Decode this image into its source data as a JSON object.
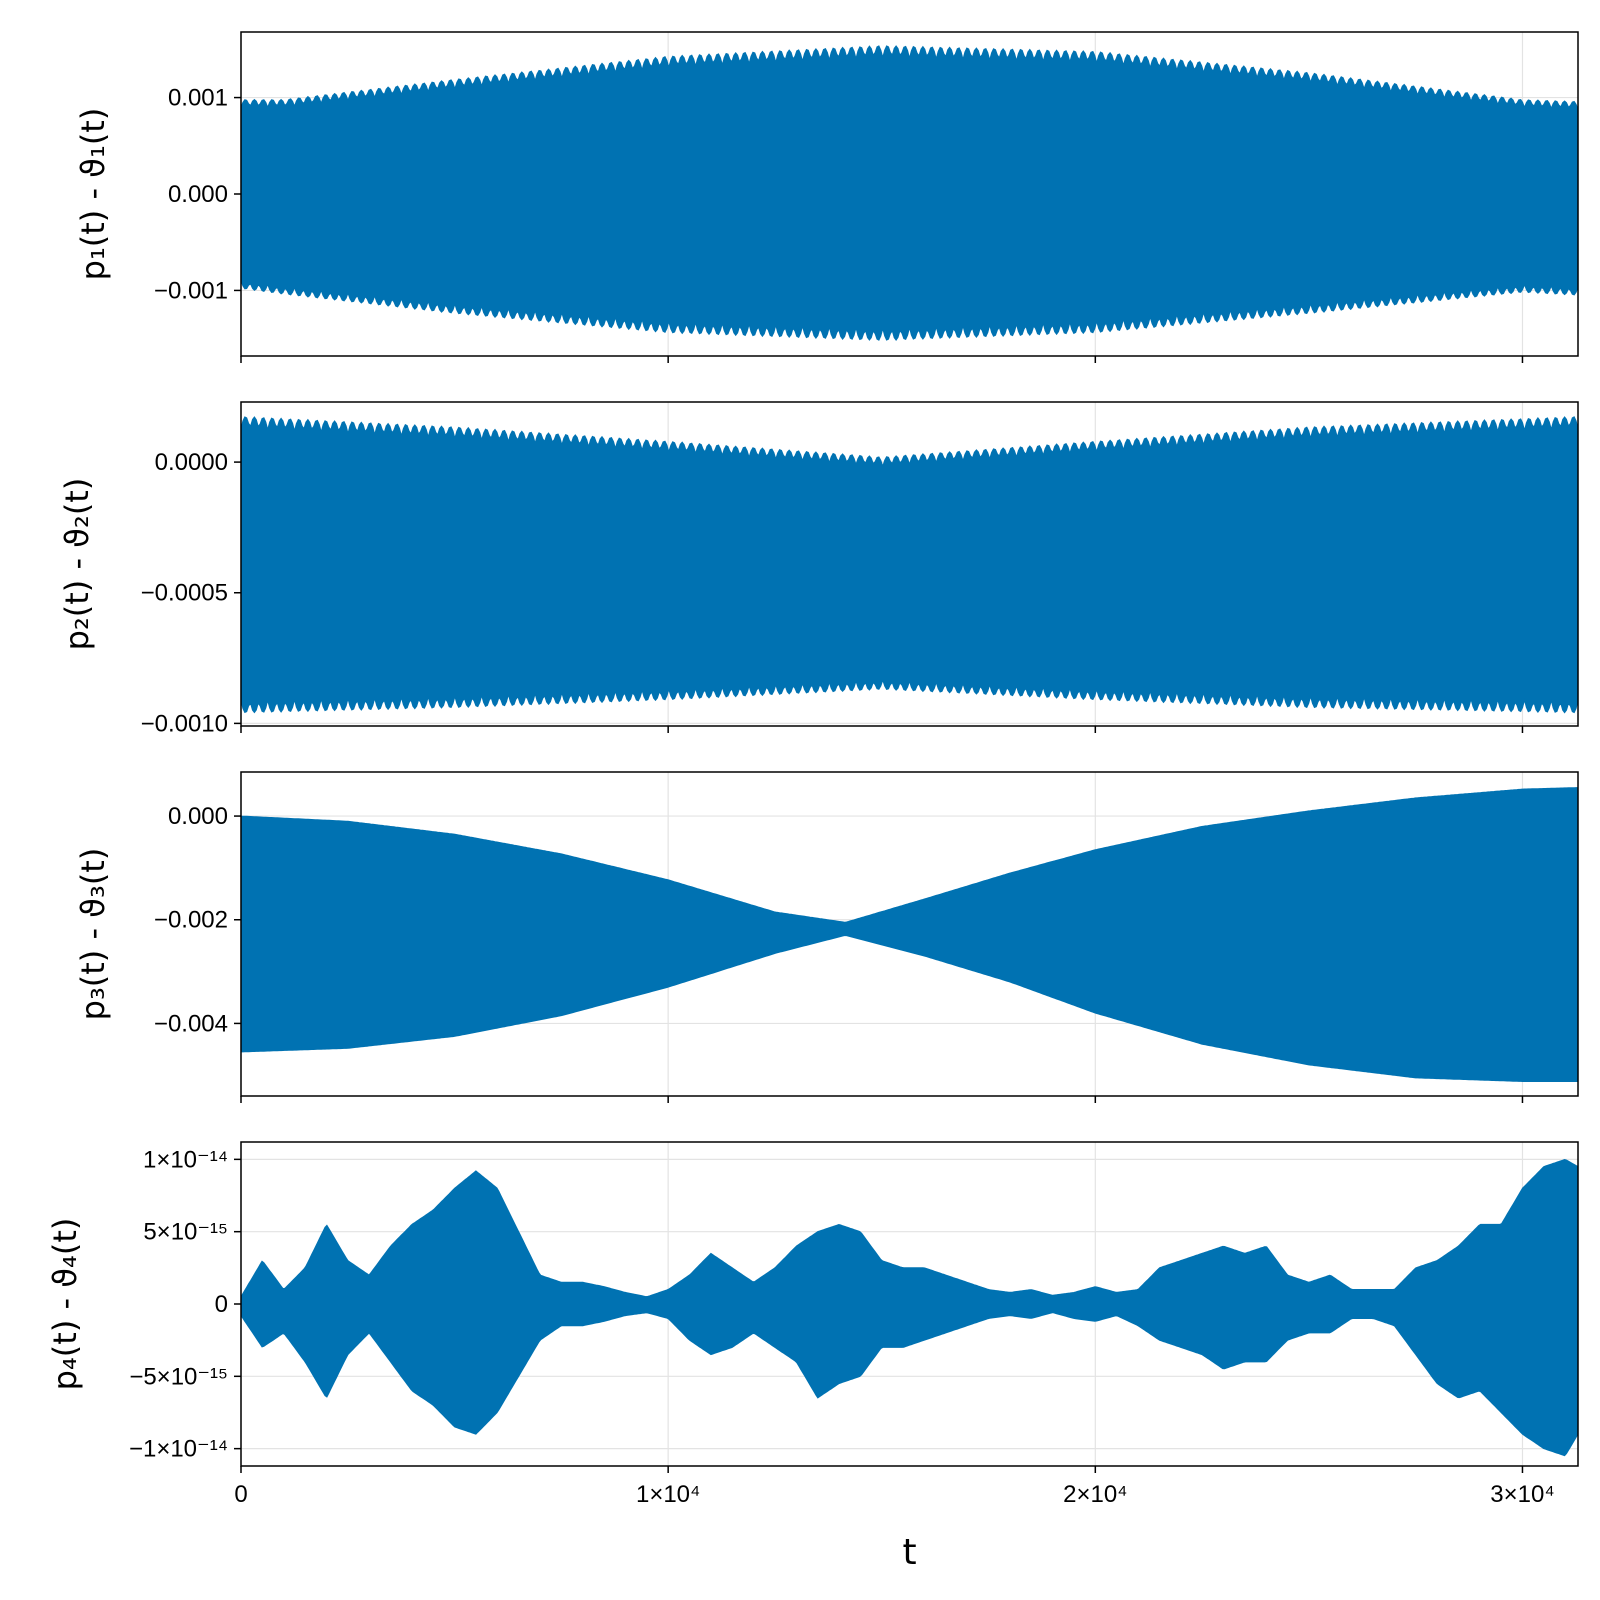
{
  "chart_data": [
    {
      "type": "area",
      "ylabel": "p₁(t) - ϑ₁(t)",
      "xlim": [
        0,
        31300
      ],
      "ylim": [
        -0.00168,
        0.00168
      ],
      "yticks": [
        {
          "v": 0.001,
          "label": "0.001"
        },
        {
          "v": 0.0,
          "label": "0.000"
        },
        {
          "v": -0.001,
          "label": "−0.001"
        }
      ],
      "color": "#0072b2",
      "envelope": {
        "x": [
          0,
          1000,
          5000,
          10000,
          15000,
          20000,
          25000,
          30000,
          31300
        ],
        "upper": [
          0.00098,
          0.00098,
          0.00119,
          0.00143,
          0.00154,
          0.00148,
          0.00126,
          0.00098,
          0.00096
        ],
        "lower": [
          -0.00098,
          -0.00104,
          -0.00124,
          -0.00144,
          -0.00152,
          -0.00144,
          -0.00124,
          -0.00102,
          -0.00105
        ]
      },
      "oscillation_periods": 150
    },
    {
      "type": "area",
      "ylabel": "p₂(t) - ϑ₂(t)",
      "xlim": [
        0,
        31300
      ],
      "ylim": [
        -0.00101,
        0.00023
      ],
      "yticks": [
        {
          "v": 0.0,
          "label": "0.0000"
        },
        {
          "v": -0.0005,
          "label": "−0.0005"
        },
        {
          "v": -0.001,
          "label": "−0.0010"
        }
      ],
      "color": "#0072b2",
      "envelope": {
        "x": [
          0,
          5000,
          10000,
          15000,
          20000,
          25000,
          31300
        ],
        "upper": [
          0.000175,
          0.000135,
          8e-05,
          2e-05,
          8e-05,
          0.000135,
          0.000175
        ],
        "lower": [
          -0.00096,
          -0.00094,
          -0.00091,
          -0.00087,
          -0.00091,
          -0.00094,
          -0.00096
        ]
      },
      "oscillation_periods": 150
    },
    {
      "type": "area",
      "ylabel": "p₃(t) - ϑ₃(t)",
      "xlim": [
        0,
        31300
      ],
      "ylim": [
        -0.0054,
        0.00085
      ],
      "yticks": [
        {
          "v": 0.0,
          "label": "0.000"
        },
        {
          "v": -0.002,
          "label": "−0.002"
        },
        {
          "v": -0.004,
          "label": "−0.004"
        }
      ],
      "color": "#0072b2",
      "envelope": {
        "x": [
          0,
          2500,
          5000,
          7500,
          10000,
          12500,
          14150,
          16000,
          18000,
          20000,
          22500,
          25000,
          27500,
          30000,
          31300
        ],
        "upper": [
          0.0,
          -0.0001,
          -0.00035,
          -0.00073,
          -0.00123,
          -0.00185,
          -0.00205,
          -0.0016,
          -0.0011,
          -0.00065,
          -0.0002,
          0.0001,
          0.00035,
          0.00052,
          0.00055
        ],
        "lower": [
          -0.00455,
          -0.00448,
          -0.00425,
          -0.00385,
          -0.0033,
          -0.00265,
          -0.0023,
          -0.0027,
          -0.0032,
          -0.0038,
          -0.0044,
          -0.0048,
          -0.00505,
          -0.00512,
          -0.00512
        ]
      },
      "oscillation_periods": 0
    },
    {
      "type": "area",
      "ylabel": "p₄(t) - ϑ₄(t)",
      "xlabel": "t",
      "xlim": [
        0,
        31300
      ],
      "ylim": [
        -1.12e-14,
        1.12e-14
      ],
      "yticks": [
        {
          "v": 1e-14,
          "label": "1×10⁻¹⁴"
        },
        {
          "v": 5e-15,
          "label": "5×10⁻¹⁵"
        },
        {
          "v": 0,
          "label": "0"
        },
        {
          "v": -5e-15,
          "label": "−5×10⁻¹⁵"
        },
        {
          "v": -1e-14,
          "label": "−1×10⁻¹⁴"
        }
      ],
      "xticks": [
        {
          "v": 0,
          "label": "0"
        },
        {
          "v": 10000,
          "label": "1×10⁴"
        },
        {
          "v": 20000,
          "label": "2×10⁴"
        },
        {
          "v": 30000,
          "label": "3×10⁴"
        }
      ],
      "color": "#0072b2",
      "envelope": {
        "x": [
          0,
          500,
          1000,
          1500,
          2000,
          2500,
          3000,
          3500,
          4000,
          4500,
          5000,
          5500,
          6000,
          6500,
          7000,
          7500,
          8000,
          8500,
          9000,
          9500,
          10000,
          10500,
          11000,
          11500,
          12000,
          12500,
          13000,
          13500,
          14000,
          14500,
          15000,
          15500,
          16000,
          16500,
          17000,
          17500,
          18000,
          18500,
          19000,
          19500,
          20000,
          20500,
          21000,
          21500,
          22000,
          22500,
          23000,
          23500,
          24000,
          24500,
          25000,
          25500,
          26000,
          26500,
          27000,
          27500,
          28000,
          28500,
          29000,
          29500,
          30000,
          30500,
          31000,
          31300
        ],
        "upper": [
          5e-16,
          3e-15,
          1e-15,
          2.5e-15,
          5.5e-15,
          3e-15,
          2e-15,
          4e-15,
          5.5e-15,
          6.5e-15,
          8e-15,
          9.2e-15,
          8e-15,
          5e-15,
          2e-15,
          1.5e-15,
          1.5e-15,
          1.2e-15,
          8e-16,
          5e-16,
          1e-15,
          2e-15,
          3.5e-15,
          2.5e-15,
          1.5e-15,
          2.5e-15,
          4e-15,
          5e-15,
          5.5e-15,
          5e-15,
          3e-15,
          2.5e-15,
          2.5e-15,
          2e-15,
          1.5e-15,
          1e-15,
          8e-16,
          1e-15,
          6e-16,
          8e-16,
          1.2e-15,
          8e-16,
          1e-15,
          2.5e-15,
          3e-15,
          3.5e-15,
          4e-15,
          3.5e-15,
          4e-15,
          2e-15,
          1.5e-15,
          2e-15,
          1e-15,
          1e-15,
          1e-15,
          2.5e-15,
          3e-15,
          4e-15,
          5.5e-15,
          5.5e-15,
          8e-15,
          9.5e-15,
          1e-14,
          9.5e-15
        ],
        "lower": [
          -8e-16,
          -3e-15,
          -2e-15,
          -4e-15,
          -6.5e-15,
          -3.5e-15,
          -2e-15,
          -4e-15,
          -6e-15,
          -7e-15,
          -8.5e-15,
          -9e-15,
          -7.5e-15,
          -5e-15,
          -2.5e-15,
          -1.5e-15,
          -1.5e-15,
          -1.2e-15,
          -8e-16,
          -6e-16,
          -1e-15,
          -2.5e-15,
          -3.5e-15,
          -3e-15,
          -2e-15,
          -3e-15,
          -4e-15,
          -6.5e-15,
          -5.5e-15,
          -5e-15,
          -3e-15,
          -3e-15,
          -2.5e-15,
          -2e-15,
          -1.5e-15,
          -1e-15,
          -8e-16,
          -1e-15,
          -6e-16,
          -1e-15,
          -1.2e-15,
          -8e-16,
          -1.5e-15,
          -2.5e-15,
          -3e-15,
          -3.5e-15,
          -4.5e-15,
          -4e-15,
          -4e-15,
          -2.5e-15,
          -2e-15,
          -2e-15,
          -1e-15,
          -1e-15,
          -1.5e-15,
          -3.5e-15,
          -5.5e-15,
          -6.5e-15,
          -6e-15,
          -7.5e-15,
          -9e-15,
          -1e-14,
          -1.05e-14,
          -9e-15
        ]
      },
      "oscillation_periods": 0
    }
  ]
}
